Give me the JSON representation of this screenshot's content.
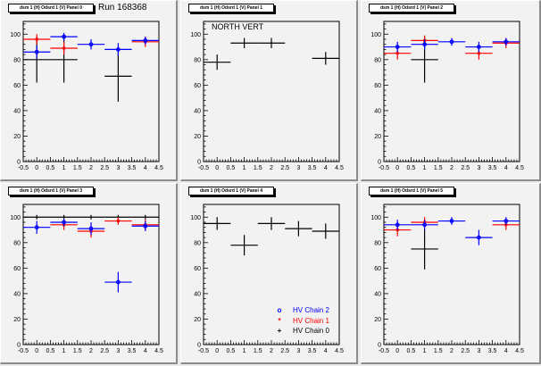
{
  "run_label": "Run 168368",
  "legend": [
    {
      "symbol": "circle",
      "glyph": "o",
      "label": "HV Chain 2",
      "color": "#0000ff"
    },
    {
      "symbol": "star",
      "glyph": "*",
      "label": "HV Chain 1",
      "color": "#ff0000"
    },
    {
      "symbol": "cross",
      "glyph": "+",
      "label": "HV Chain 0",
      "color": "#000000"
    }
  ],
  "colors": {
    "chain0": "#000000",
    "chain1": "#ff0000",
    "chain2": "#0000ff",
    "pad_bg": "#f2f2f2"
  },
  "chart_data": [
    {
      "type": "scatter",
      "title": "dsm 1 (H) Odsrd 1 (V) Panel 0",
      "annotation": "Run 168368",
      "xlim": [
        -0.5,
        4.5
      ],
      "ylim": [
        0,
        110
      ],
      "xticks": [
        "-0.5",
        "0",
        "0.5",
        "1",
        "1.5",
        "2",
        "2.5",
        "3",
        "3.5",
        "4",
        "4.5"
      ],
      "yticks": [
        "0",
        "20",
        "40",
        "60",
        "80",
        "100"
      ],
      "series": [
        {
          "name": "HV Chain 0",
          "points": [
            {
              "x": 0,
              "y": 80,
              "err": 18
            },
            {
              "x": 1,
              "y": 80,
              "err": 18
            },
            {
              "x": 3,
              "y": 67,
              "err": 20
            }
          ]
        },
        {
          "name": "HV Chain 1",
          "points": [
            {
              "x": 0,
              "y": 96,
              "err": 4
            },
            {
              "x": 1,
              "y": 89,
              "err": 5
            },
            {
              "x": 4,
              "y": 94,
              "err": 4
            }
          ]
        },
        {
          "name": "HV Chain 2",
          "points": [
            {
              "x": 0,
              "y": 86,
              "err": 5
            },
            {
              "x": 1,
              "y": 98,
              "err": 3
            },
            {
              "x": 2,
              "y": 92,
              "err": 4
            },
            {
              "x": 3,
              "y": 88,
              "err": 5
            },
            {
              "x": 4,
              "y": 95,
              "err": 3
            }
          ]
        }
      ]
    },
    {
      "type": "scatter",
      "title": "dsm 1 (H) Odsrd 1 (V) Panel 1",
      "annotation": "NORTH VERT",
      "xlim": [
        -0.5,
        4.5
      ],
      "ylim": [
        0,
        110
      ],
      "xticks": [
        "-0.5",
        "0",
        "0.5",
        "1",
        "1.5",
        "2",
        "2.5",
        "3",
        "3.5",
        "4",
        "4.5"
      ],
      "yticks": [
        "0",
        "20",
        "40",
        "60",
        "80",
        "100"
      ],
      "series": [
        {
          "name": "HV Chain 0",
          "points": [
            {
              "x": 0,
              "y": 78,
              "err": 6
            },
            {
              "x": 1,
              "y": 93,
              "err": 4
            },
            {
              "x": 2,
              "y": 93,
              "err": 4
            },
            {
              "x": 4,
              "y": 81,
              "err": 5
            }
          ]
        },
        {
          "name": "HV Chain 1",
          "points": []
        },
        {
          "name": "HV Chain 2",
          "points": []
        }
      ]
    },
    {
      "type": "scatter",
      "title": "dsm 1 (H) Odsrd 1 (V) Panel 2",
      "annotation": "",
      "xlim": [
        -0.5,
        4.5
      ],
      "ylim": [
        0,
        110
      ],
      "xticks": [
        "-0.5",
        "0",
        "0.5",
        "1",
        "1.5",
        "2",
        "2.5",
        "3",
        "3.5",
        "4",
        "4.5"
      ],
      "yticks": [
        "0",
        "20",
        "40",
        "60",
        "80",
        "100"
      ],
      "series": [
        {
          "name": "HV Chain 0",
          "points": [
            {
              "x": 1,
              "y": 80,
              "err": 18
            }
          ]
        },
        {
          "name": "HV Chain 1",
          "points": [
            {
              "x": 0,
              "y": 85,
              "err": 5
            },
            {
              "x": 1,
              "y": 95,
              "err": 4
            },
            {
              "x": 3,
              "y": 85,
              "err": 5
            },
            {
              "x": 4,
              "y": 93,
              "err": 4
            }
          ]
        },
        {
          "name": "HV Chain 2",
          "points": [
            {
              "x": 0,
              "y": 90,
              "err": 4
            },
            {
              "x": 1,
              "y": 92,
              "err": 4
            },
            {
              "x": 2,
              "y": 94,
              "err": 3
            },
            {
              "x": 3,
              "y": 90,
              "err": 4
            },
            {
              "x": 4,
              "y": 94,
              "err": 3
            }
          ]
        }
      ]
    },
    {
      "type": "scatter",
      "title": "dsm 1 (H) Odsrd 1 (V) Panel 3",
      "annotation": "",
      "xlim": [
        -0.5,
        4.5
      ],
      "ylim": [
        0,
        110
      ],
      "xticks": [
        "-0.5",
        "0",
        "0.5",
        "1",
        "1.5",
        "2",
        "2.5",
        "3",
        "3.5",
        "4",
        "4.5"
      ],
      "yticks": [
        "0",
        "20",
        "40",
        "60",
        "80",
        "100"
      ],
      "series": [
        {
          "name": "HV Chain 0",
          "points": [
            {
              "x": 0,
              "y": 100,
              "err": 0
            },
            {
              "x": 1,
              "y": 100,
              "err": 0
            },
            {
              "x": 2,
              "y": 100,
              "err": 0
            },
            {
              "x": 3,
              "y": 100,
              "err": 0
            },
            {
              "x": 4,
              "y": 100,
              "err": 0
            }
          ]
        },
        {
          "name": "HV Chain 1",
          "points": [
            {
              "x": 1,
              "y": 94,
              "err": 4
            },
            {
              "x": 2,
              "y": 89,
              "err": 5
            },
            {
              "x": 3,
              "y": 97,
              "err": 3
            },
            {
              "x": 4,
              "y": 94,
              "err": 4
            }
          ]
        },
        {
          "name": "HV Chain 2",
          "points": [
            {
              "x": 0,
              "y": 92,
              "err": 5
            },
            {
              "x": 1,
              "y": 96,
              "err": 3
            },
            {
              "x": 2,
              "y": 91,
              "err": 5
            },
            {
              "x": 3,
              "y": 49,
              "err": 8
            },
            {
              "x": 4,
              "y": 93,
              "err": 4
            }
          ]
        }
      ]
    },
    {
      "type": "scatter",
      "title": "dsm 1 (H) Odsrd 1 (V) Panel 4",
      "annotation": "",
      "xlim": [
        -0.5,
        4.5
      ],
      "ylim": [
        0,
        110
      ],
      "xticks": [
        "-0.5",
        "0",
        "0.5",
        "1",
        "1.5",
        "2",
        "2.5",
        "3",
        "3.5",
        "4",
        "4.5"
      ],
      "yticks": [
        "0",
        "20",
        "40",
        "60",
        "80",
        "100"
      ],
      "series": [
        {
          "name": "HV Chain 0",
          "points": [
            {
              "x": 0,
              "y": 95,
              "err": 5
            },
            {
              "x": 1,
              "y": 78,
              "err": 8
            },
            {
              "x": 2,
              "y": 95,
              "err": 5
            },
            {
              "x": 3,
              "y": 91,
              "err": 6
            },
            {
              "x": 4,
              "y": 89,
              "err": 6
            }
          ]
        },
        {
          "name": "HV Chain 1",
          "points": []
        },
        {
          "name": "HV Chain 2",
          "points": []
        }
      ],
      "legend": "bottom-right"
    },
    {
      "type": "scatter",
      "title": "dsm 1 (H) Odsrd 1 (V) Panel 5",
      "annotation": "",
      "xlim": [
        -0.5,
        4.5
      ],
      "ylim": [
        0,
        110
      ],
      "xticks": [
        "-0.5",
        "0",
        "0.5",
        "1",
        "1.5",
        "2",
        "2.5",
        "3",
        "3.5",
        "4",
        "4.5"
      ],
      "yticks": [
        "0",
        "20",
        "40",
        "60",
        "80",
        "100"
      ],
      "series": [
        {
          "name": "HV Chain 0",
          "points": [
            {
              "x": 1,
              "y": 75,
              "err": 16
            }
          ]
        },
        {
          "name": "HV Chain 1",
          "points": [
            {
              "x": 0,
              "y": 90,
              "err": 5
            },
            {
              "x": 1,
              "y": 96,
              "err": 4
            },
            {
              "x": 4,
              "y": 94,
              "err": 4
            }
          ]
        },
        {
          "name": "HV Chain 2",
          "points": [
            {
              "x": 0,
              "y": 94,
              "err": 4
            },
            {
              "x": 1,
              "y": 94,
              "err": 4
            },
            {
              "x": 2,
              "y": 97,
              "err": 3
            },
            {
              "x": 3,
              "y": 84,
              "err": 6
            },
            {
              "x": 4,
              "y": 97,
              "err": 3
            }
          ]
        }
      ]
    }
  ]
}
